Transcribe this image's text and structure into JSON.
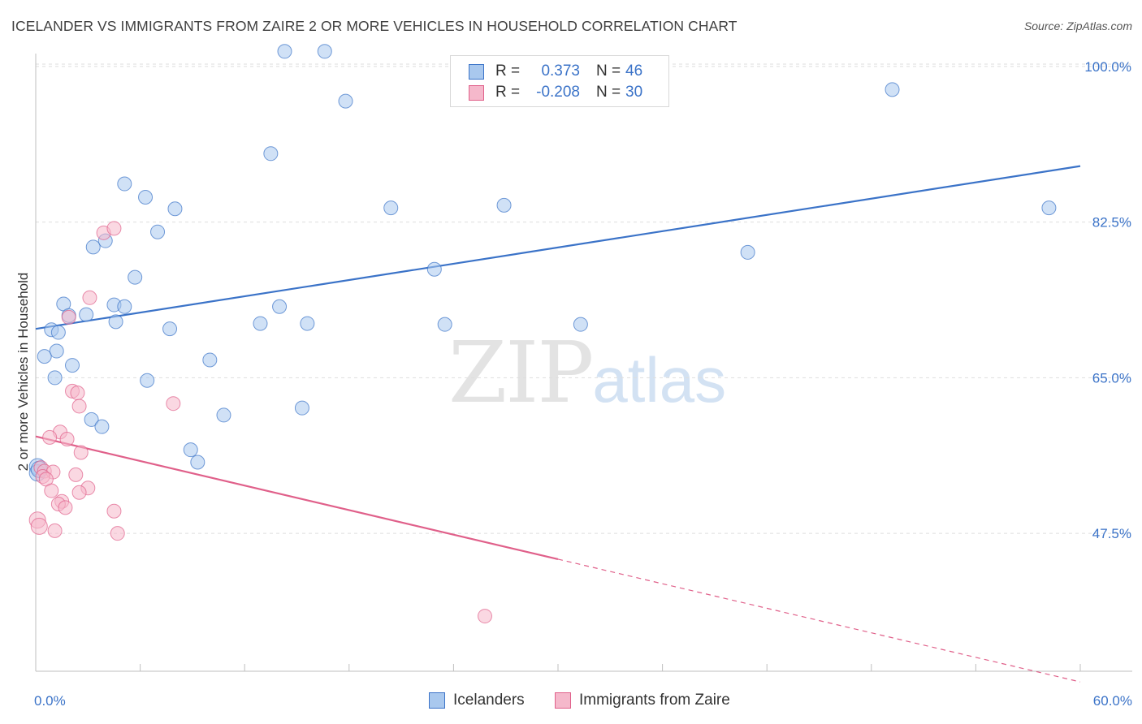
{
  "title": "ICELANDER VS IMMIGRANTS FROM ZAIRE 2 OR MORE VEHICLES IN HOUSEHOLD CORRELATION CHART",
  "source": "Source: ZipAtlas.com",
  "watermark": {
    "zip": "ZIP",
    "atlas": "atlas"
  },
  "legend": {
    "rows": [
      {
        "r_label": "R =",
        "r_value": "0.373",
        "n_label": "N =",
        "n_value": "46",
        "color": "#a9c8ee"
      },
      {
        "r_label": "R =",
        "r_value": "-0.208",
        "n_label": "N =",
        "n_value": "30",
        "color": "#f5b8cb"
      }
    ]
  },
  "bottom_legend": {
    "series1": "Icelanders",
    "series2": "Immigrants from Zaire"
  },
  "chart_data": {
    "type": "scatter",
    "title": "ICELANDER VS IMMIGRANTS FROM ZAIRE 2 OR MORE VEHICLES IN HOUSEHOLD CORRELATION CHART",
    "xlabel": "",
    "ylabel": "2 or more Vehicles in Household",
    "xlim": [
      0,
      60
    ],
    "ylim": [
      32,
      102
    ],
    "x_tick_labels": [
      "0.0%",
      "60.0%"
    ],
    "y_ticks": [
      47.5,
      65.0,
      82.5,
      100.0
    ],
    "y_tick_labels": [
      "47.5%",
      "65.0%",
      "82.5%",
      "100.0%"
    ],
    "grid": true,
    "legend_position": "top-center",
    "series": [
      {
        "name": "Icelanders",
        "color": "#a9c8ee",
        "stroke": "#3b73c8",
        "points": [
          [
            14.3,
            101.7
          ],
          [
            16.6,
            101.7
          ],
          [
            17.8,
            96.1
          ],
          [
            49.2,
            97.4
          ],
          [
            13.5,
            90.2
          ],
          [
            5.1,
            86.8
          ],
          [
            6.3,
            85.3
          ],
          [
            8.0,
            84.0
          ],
          [
            20.4,
            84.1
          ],
          [
            26.9,
            84.4
          ],
          [
            58.2,
            84.1
          ],
          [
            7.0,
            81.4
          ],
          [
            4.0,
            80.4
          ],
          [
            3.3,
            79.7
          ],
          [
            22.9,
            77.2
          ],
          [
            40.9,
            79.1
          ],
          [
            5.7,
            76.3
          ],
          [
            1.6,
            73.3
          ],
          [
            4.5,
            73.2
          ],
          [
            5.1,
            73.0
          ],
          [
            14.0,
            73.0
          ],
          [
            1.9,
            72.0
          ],
          [
            2.9,
            72.1
          ],
          [
            4.6,
            71.3
          ],
          [
            12.9,
            71.1
          ],
          [
            15.6,
            71.1
          ],
          [
            23.5,
            71.0
          ],
          [
            31.3,
            71.0
          ],
          [
            0.9,
            70.4
          ],
          [
            1.3,
            70.1
          ],
          [
            7.7,
            70.5
          ],
          [
            1.2,
            68.0
          ],
          [
            0.5,
            67.4
          ],
          [
            2.1,
            66.4
          ],
          [
            10.0,
            67.0
          ],
          [
            1.1,
            65.0
          ],
          [
            6.4,
            64.7
          ],
          [
            15.3,
            61.6
          ],
          [
            10.8,
            60.8
          ],
          [
            3.2,
            60.3
          ],
          [
            3.8,
            59.5
          ],
          [
            8.9,
            56.9
          ],
          [
            9.3,
            55.5
          ],
          [
            0.1,
            55.0
          ],
          [
            0.1,
            54.3
          ],
          [
            0.2,
            54.7
          ]
        ],
        "trend": {
          "x": [
            0,
            60
          ],
          "y": [
            70.5,
            88.8
          ],
          "dashed_after": null
        }
      },
      {
        "name": "Immigrants from Zaire",
        "color": "#f5b8cb",
        "stroke": "#e0608a",
        "points": [
          [
            3.9,
            81.3
          ],
          [
            4.5,
            81.8
          ],
          [
            3.1,
            74.0
          ],
          [
            1.9,
            71.8
          ],
          [
            2.1,
            63.5
          ],
          [
            2.4,
            63.3
          ],
          [
            2.5,
            61.8
          ],
          [
            7.9,
            62.1
          ],
          [
            1.4,
            58.9
          ],
          [
            0.8,
            58.3
          ],
          [
            1.8,
            58.1
          ],
          [
            2.6,
            56.6
          ],
          [
            0.3,
            54.9
          ],
          [
            0.5,
            54.5
          ],
          [
            1.0,
            54.4
          ],
          [
            2.3,
            54.1
          ],
          [
            0.4,
            53.9
          ],
          [
            0.6,
            53.6
          ],
          [
            3.0,
            52.6
          ],
          [
            0.9,
            52.3
          ],
          [
            2.5,
            52.1
          ],
          [
            1.5,
            51.1
          ],
          [
            1.3,
            50.8
          ],
          [
            1.7,
            50.4
          ],
          [
            4.5,
            50.0
          ],
          [
            0.1,
            49.0
          ],
          [
            1.1,
            47.8
          ],
          [
            4.7,
            47.5
          ],
          [
            25.8,
            38.2
          ],
          [
            0.2,
            48.3
          ]
        ],
        "trend": {
          "x": [
            0,
            30
          ],
          "y": [
            58.4,
            44.6
          ],
          "dashed_x": [
            30,
            60
          ],
          "dashed_y": [
            44.6,
            30.8
          ]
        }
      }
    ]
  }
}
